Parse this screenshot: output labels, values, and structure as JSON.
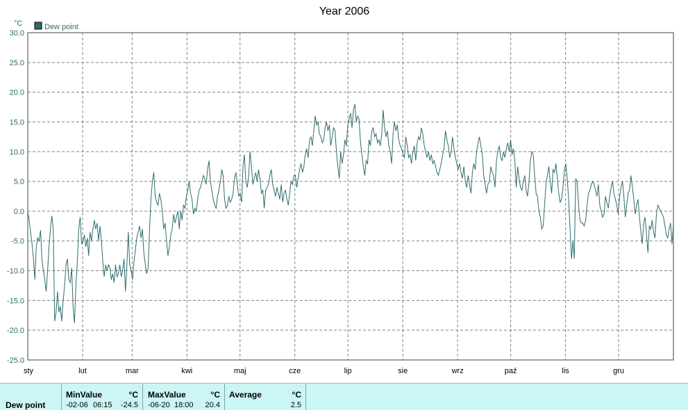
{
  "chart_data": {
    "type": "line",
    "title": "Year 2006",
    "yunit": "°C",
    "ylim": [
      -25,
      30
    ],
    "yticks": [
      "30.0",
      "25.0",
      "20.0",
      "15.0",
      "10.0",
      "5.0",
      "0.0",
      "-5.0",
      "-10.0",
      "-15.0",
      "-20.0",
      "-25.0"
    ],
    "months": [
      "sty",
      "lut",
      "mar",
      "kwi",
      "maj",
      "cze",
      "lip",
      "sie",
      "wrz",
      "paź",
      "lis",
      "gru"
    ],
    "grid": true,
    "legend_position": "top-left",
    "series": [
      {
        "name": "Dew point",
        "color": "#2e6b6b",
        "values": [
          0.0,
          -1.5,
          -3.5,
          -5.5,
          -8.0,
          -11.5,
          -6.0,
          -4.5,
          -5.0,
          -3.2,
          -8.0,
          -10.0,
          -11.5,
          -13.5,
          -10.0,
          -6.0,
          -3.0,
          -0.8,
          -3.0,
          -18.5,
          -17.0,
          -13.5,
          -17.0,
          -16.0,
          -18.5,
          -15.0,
          -12.5,
          -9.0,
          -8.0,
          -11.5,
          -12.0,
          -9.5,
          -16.0,
          -18.8,
          -12.5,
          -8.5,
          -3.0,
          -1.0,
          -5.5,
          -5.0,
          -4.0,
          -6.0,
          -4.5,
          -7.5,
          -3.5,
          -5.0,
          -3.0,
          -1.5,
          -3.0,
          -2.0,
          -5.0,
          -2.5,
          -5.0,
          -8.5,
          -11.0,
          -9.0,
          -10.0,
          -9.0,
          -9.5,
          -11.5,
          -10.5,
          -12.0,
          -9.0,
          -11.0,
          -10.5,
          -9.0,
          -11.0,
          -10.0,
          -8.0,
          -13.5,
          -9.0,
          -3.5,
          -9.0,
          -10.0,
          -11.5,
          -8.5,
          -6.5,
          -4.5,
          -3.5,
          -2.5,
          -4.5,
          -3.0,
          -7.0,
          -9.0,
          -10.5,
          -9.5,
          -3.0,
          2.0,
          5.0,
          6.5,
          2.5,
          1.5,
          1.0,
          3.0,
          2.0,
          0.0,
          -3.0,
          -2.0,
          -5.0,
          -7.5,
          -6.0,
          -4.0,
          -3.0,
          -0.5,
          -2.0,
          -1.0,
          0.0,
          -3.0,
          0.0,
          -1.5,
          1.0,
          0.5,
          2.5,
          3.5,
          5.0,
          3.0,
          2.0,
          -0.5,
          0.5,
          0.0,
          2.0,
          3.5,
          4.0,
          5.0,
          6.0,
          5.5,
          4.5,
          7.0,
          8.5,
          5.0,
          3.5,
          2.0,
          1.0,
          0.5,
          2.5,
          3.5,
          5.0,
          7.0,
          6.0,
          2.0,
          0.5,
          1.0,
          2.5,
          1.5,
          2.0,
          3.0,
          5.5,
          6.5,
          4.5,
          2.5,
          3.0,
          1.5,
          7.5,
          9.5,
          5.0,
          4.0,
          6.0,
          10.0,
          7.5,
          4.5,
          5.5,
          6.5,
          5.0,
          7.0,
          5.5,
          3.0,
          3.5,
          0.5,
          3.5,
          4.0,
          4.5,
          6.0,
          7.0,
          4.5,
          3.5,
          2.5,
          4.0,
          3.0,
          2.0,
          4.5,
          1.5,
          3.0,
          3.5,
          2.0,
          1.0,
          3.0,
          5.0,
          4.5,
          6.0,
          6.0,
          4.0,
          5.5,
          7.0,
          8.0,
          6.5,
          7.5,
          9.5,
          10.5,
          9.0,
          12.0,
          12.5,
          11.0,
          13.5,
          16.0,
          14.5,
          15.0,
          13.0,
          12.5,
          11.5,
          12.0,
          14.0,
          15.0,
          13.5,
          14.5,
          11.0,
          12.5,
          14.0,
          13.5,
          10.0,
          7.5,
          5.5,
          10.0,
          8.0,
          9.5,
          12.0,
          11.0,
          14.5,
          15.5,
          16.5,
          14.0,
          17.0,
          18.0,
          15.0,
          16.0,
          15.5,
          11.5,
          9.5,
          7.5,
          6.0,
          8.5,
          8.0,
          12.0,
          11.0,
          13.5,
          14.0,
          12.5,
          13.0,
          11.5,
          12.0,
          11.0,
          13.0,
          17.0,
          14.0,
          12.5,
          13.5,
          11.0,
          10.0,
          8.0,
          13.0,
          15.0,
          13.5,
          14.5,
          12.0,
          11.0,
          10.5,
          9.5,
          9.0,
          12.5,
          11.0,
          9.0,
          9.5,
          8.0,
          10.0,
          11.0,
          8.5,
          11.5,
          12.5,
          12.0,
          14.0,
          13.0,
          11.0,
          10.0,
          9.0,
          10.0,
          8.5,
          9.5,
          8.0,
          8.5,
          7.5,
          6.5,
          6.0,
          7.0,
          8.0,
          9.5,
          10.5,
          13.5,
          12.0,
          11.0,
          9.0,
          10.0,
          12.5,
          10.5,
          9.0,
          8.0,
          7.0,
          8.0,
          6.5,
          5.5,
          7.5,
          5.0,
          4.0,
          6.0,
          4.5,
          3.0,
          6.5,
          8.0,
          7.0,
          10.0,
          11.5,
          12.5,
          11.0,
          9.5,
          6.0,
          4.5,
          3.0,
          4.5,
          5.0,
          7.5,
          6.5,
          6.0,
          4.0,
          8.5,
          10.0,
          11.0,
          9.0,
          8.5,
          10.0,
          9.0,
          10.5,
          11.5,
          10.0,
          12.0,
          9.5,
          10.5,
          8.5,
          4.0,
          7.5,
          5.5,
          4.0,
          3.5,
          5.0,
          6.0,
          3.5,
          2.5,
          5.0,
          8.5,
          10.0,
          9.5,
          6.0,
          3.0,
          2.5,
          0.0,
          -1.0,
          -3.0,
          -2.5,
          1.0,
          4.5,
          6.0,
          7.5,
          5.0,
          3.0,
          7.0,
          6.5,
          8.0,
          5.5,
          3.0,
          1.5,
          2.0,
          4.0,
          7.0,
          8.0,
          5.5,
          2.0,
          -3.0,
          -8.0,
          -5.0,
          -8.0,
          5.5,
          5.0,
          1.0,
          -1.5,
          -2.0,
          -2.0,
          -2.5,
          -1.5,
          1.0,
          3.0,
          3.5,
          4.5,
          5.0,
          4.5,
          3.5,
          2.5,
          4.5,
          1.0,
          0.0,
          -1.0,
          -0.5,
          2.5,
          1.5,
          0.5,
          2.5,
          4.0,
          5.0,
          3.0,
          2.0,
          1.0,
          -0.5,
          2.5,
          4.0,
          5.0,
          2.5,
          -1.0,
          1.0,
          3.0,
          3.5,
          6.0,
          4.0,
          2.0,
          -0.5,
          1.0,
          2.0,
          -1.0,
          -3.5,
          -5.5,
          -2.0,
          -1.0,
          -4.0,
          -7.0,
          -2.5,
          -3.0,
          -1.5,
          -3.5,
          -4.5,
          -0.5,
          1.0,
          0.5,
          0.0,
          -0.5,
          -1.0,
          -2.5,
          -4.0,
          -4.5,
          -3.0,
          -2.0,
          -5.5,
          -2.0
        ]
      }
    ]
  },
  "stats": {
    "row_label": "Dew point",
    "min": {
      "header": "MinValue",
      "unit": "°C",
      "date": "-02-06",
      "time": "06:15",
      "value": "-24.5"
    },
    "max": {
      "header": "MaxValue",
      "unit": "°C",
      "date": "-06-20",
      "time": "18:00",
      "value": "20.4"
    },
    "avg": {
      "header": "Average",
      "unit": "°C",
      "value": "2.5"
    }
  }
}
